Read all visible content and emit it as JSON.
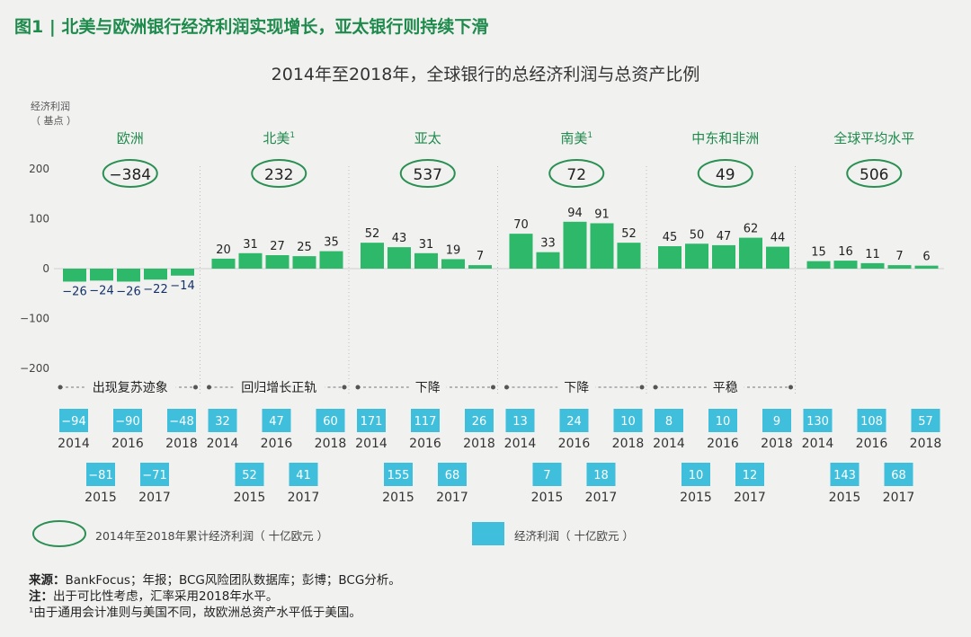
{
  "header": {
    "figure_title": "图1 | 北美与欧洲银行经济利润实现增长，亚太银行则持续下滑"
  },
  "chart_data": {
    "type": "bar",
    "title": "2014年至2018年，全球银行的总经济利润与总资产比例",
    "ylabel_line1": "经济利润",
    "ylabel_line2": "（ 基点 ）",
    "ylim": [
      -200,
      200
    ],
    "yticks": [
      200,
      100,
      0,
      -100,
      -200
    ],
    "ytick_labels": [
      "200",
      "100",
      "0",
      "−100",
      "−200"
    ],
    "categories": [
      "2014",
      "2015",
      "2016",
      "2017",
      "2018"
    ],
    "colors": {
      "bar": "#2eb86a",
      "box": "#3fbfdc",
      "oval": "#2a8f52",
      "title": "#1e8a4c",
      "region": "#1e8a4c",
      "label": "#222222",
      "neg_label": "#14326a"
    },
    "series": [
      {
        "name": "欧洲",
        "sup": "",
        "cumulative": "−384",
        "values": [
          -26,
          -24,
          -26,
          -22,
          -14
        ],
        "labels": [
          "−26",
          "−24",
          "−26",
          "−22",
          "−14"
        ],
        "trend": "出现复苏迹象",
        "profit": [
          "−94",
          "−81",
          "−90",
          "−71",
          "−48"
        ]
      },
      {
        "name": "北美",
        "sup": "1",
        "cumulative": "232",
        "values": [
          20,
          31,
          27,
          25,
          35
        ],
        "labels": [
          "20",
          "31",
          "27",
          "25",
          "35"
        ],
        "trend": "回归增长正轨",
        "profit": [
          "32",
          "52",
          "47",
          "41",
          "60"
        ]
      },
      {
        "name": "亚太",
        "sup": "",
        "cumulative": "537",
        "values": [
          52,
          43,
          31,
          19,
          7
        ],
        "labels": [
          "52",
          "43",
          "31",
          "19",
          "7"
        ],
        "trend": "下降",
        "profit": [
          "171",
          "155",
          "117",
          "68",
          "26"
        ]
      },
      {
        "name": "南美",
        "sup": "1",
        "cumulative": "72",
        "values": [
          70,
          33,
          94,
          91,
          52
        ],
        "labels": [
          "70",
          "33",
          "94",
          "91",
          "52"
        ],
        "trend": "下降",
        "profit": [
          "13",
          "7",
          "24",
          "18",
          "10"
        ]
      },
      {
        "name": "中东和非洲",
        "sup": "",
        "cumulative": "49",
        "values": [
          45,
          50,
          47,
          62,
          44
        ],
        "labels": [
          "45",
          "50",
          "47",
          "62",
          "44"
        ],
        "trend": "平稳",
        "profit": [
          "8",
          "10",
          "10",
          "12",
          "9"
        ]
      },
      {
        "name": "全球平均水平",
        "sup": "",
        "cumulative": "506",
        "values": [
          15,
          16,
          11,
          7,
          6
        ],
        "labels": [
          "15",
          "16",
          "11",
          "7",
          "6"
        ],
        "trend": "",
        "profit": [
          "130",
          "143",
          "108",
          "68",
          "57"
        ]
      }
    ]
  },
  "legend": {
    "oval_label": "2014年至2018年累计经济利润（ 十亿欧元 ）",
    "rect_label": "经济利润（ 十亿欧元 ）"
  },
  "notes": {
    "source_label": "来源：",
    "source_text": "BankFocus；年报；BCG风险团队数据库；彭博；BCG分析。",
    "note_label": "注：",
    "note_text": "出于可比性考虑，汇率采用2018年水平。",
    "footnote_marker": "¹",
    "footnote_text": "由于通用会计准则与美国不同，故欧洲总资产水平低于美国。"
  }
}
